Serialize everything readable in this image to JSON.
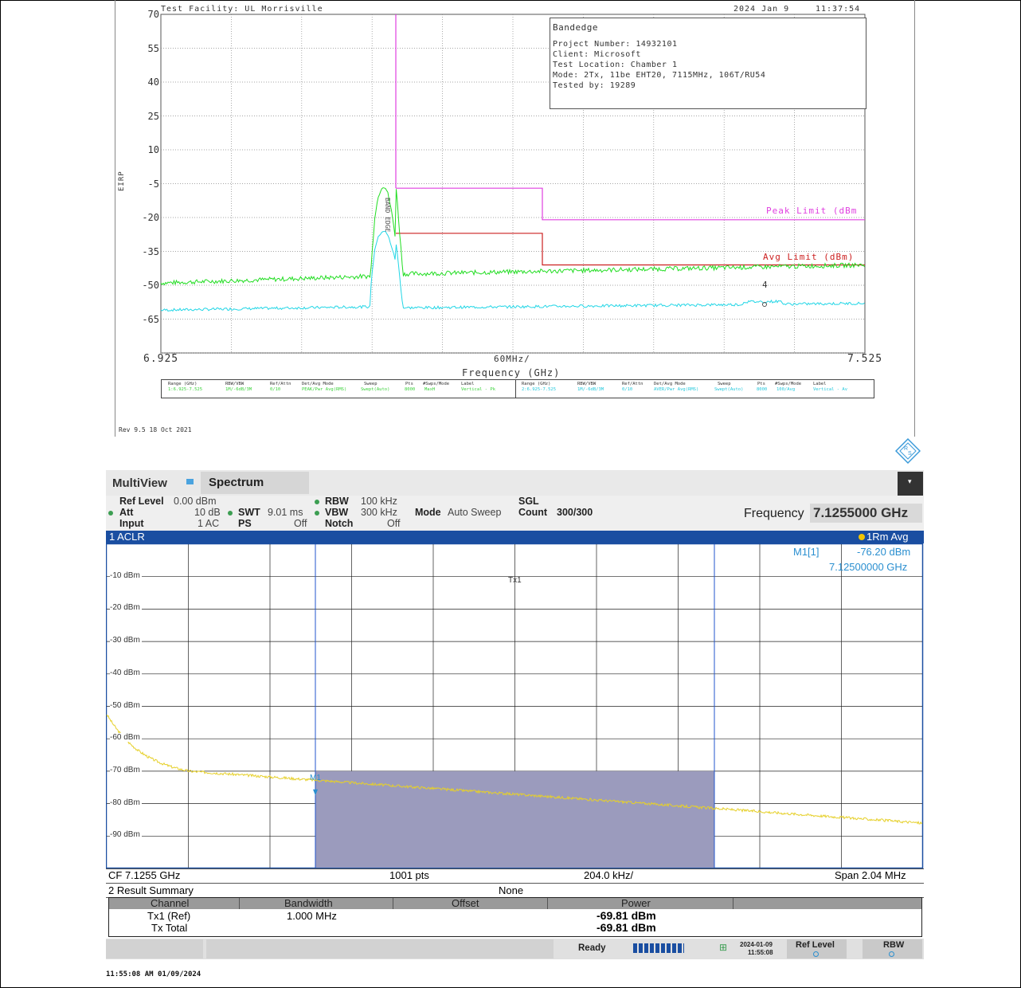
{
  "top_plot": {
    "header_left": "Test Facility:  UL Morrisville",
    "header_date": "2024 Jan 9",
    "header_time": "11:37:54",
    "info_lines": [
      "Bandedge",
      "Project Number: 14932101",
      "Client: Microsoft",
      "Test Location: Chamber 1",
      "Mode: 2Tx, 11be EHT20, 7115MHz, 106T/RU54",
      "Tested by: 19289"
    ],
    "y_label": "EIRP",
    "y_ticks": [
      "70",
      "55",
      "40",
      "25",
      "10",
      "-5",
      "-20",
      "-35",
      "-50",
      "-65"
    ],
    "x_start": "6.925",
    "x_end": "7.525",
    "x_center": "60MHz/",
    "x_label": "Frequency (GHz)",
    "band_label": "BAND EDGE",
    "peak_limit_label": "Peak Limit (dBm",
    "avg_limit_label": "Avg Limit (dBm)",
    "marker_label": "4",
    "legend_left": {
      "range_h": "Range (GHz)",
      "range_v": "1:6.925-7.525",
      "rbw_h": "RBW/VBW",
      "rbw_v": "1M/-6dB/3M",
      "ref_h": "Ref/Attn",
      "ref_v": "0/10",
      "det_h": "Det/Avg Mode",
      "det_v": "PEAK/Pwr Avg(RMS)",
      "sweep_h": "Sweep",
      "sweep_v": "Swept(Auto)",
      "pts_h": "Pts",
      "pts_v": "8000",
      "mode_h": "#Swps/Mode",
      "mode_v": "MaxH",
      "label_h": "Label",
      "label_v": "Vertical - Pk"
    },
    "legend_right": {
      "range_h": "Range (GHz)",
      "range_v": "2:6.925-7.525",
      "rbw_h": "RBW/VBW",
      "rbw_v": "1M/-6dB/3M",
      "ref_h": "Ref/Attn",
      "ref_v": "0/10",
      "det_h": "Det/Avg Mode",
      "det_v": "AVER/Pwr Avg(RMS)",
      "sweep_h": "Sweep",
      "sweep_v": "Swept(Auto)",
      "pts_h": "Pts",
      "pts_v": "8000",
      "mode_h": "#Swps/Mode",
      "mode_v": "100/Avg",
      "label_h": "Label",
      "label_v": "Vertical - Av"
    },
    "colors": {
      "peak_trace": "#22dd22",
      "avg_trace": "#22d6e6",
      "peak_limit": "#e040e0",
      "avg_limit": "#cc2020"
    },
    "rev": "Rev 9.5 18 Oct 2021"
  },
  "analyzer": {
    "tab_multiview": "MultiView",
    "tab_spectrum": "Spectrum",
    "ref_level_label": "Ref Level",
    "ref_level_value": "0.00 dBm",
    "att_label": "Att",
    "att_value": "10 dB",
    "swt_label": "SWT",
    "swt_value": "9.01 ms",
    "input_label": "Input",
    "input_value": "1 AC",
    "ps_label": "PS",
    "ps_value": "Off",
    "rbw_label": "RBW",
    "rbw_value": "100 kHz",
    "vbw_label": "VBW",
    "vbw_value": "300 kHz",
    "notch_label": "Notch",
    "notch_value": "Off",
    "mode_label": "Mode",
    "mode_value": "Auto Sweep",
    "sgl": "SGL",
    "count_label": "Count",
    "count_value": "300/300",
    "frequency_label": "Frequency",
    "frequency_value": "7.1255000 GHz",
    "diagram_title": "1 ACLR",
    "trace_mode": "1Rm Avg",
    "marker_name": "M1[1]",
    "marker_level": "-76.20 dBm",
    "marker_freq": "7.12500000 GHz",
    "marker_tag": "M1",
    "tx_label": "Tx1",
    "y_ticks": [
      "-10 dBm",
      "-20 dBm",
      "-30 dBm",
      "-40 dBm",
      "-50 dBm",
      "-60 dBm",
      "-70 dBm",
      "-80 dBm",
      "-90 dBm"
    ],
    "cf": "CF 7.1255 GHz",
    "pts": "1001 pts",
    "div": "204.0 kHz/",
    "span": "Span 2.04 MHz",
    "result_title": "2 Result Summary",
    "result_center": "None",
    "table_headers": [
      "Channel",
      "Bandwidth",
      "Offset",
      "Power"
    ],
    "rows": [
      {
        "channel": "Tx1 (Ref)",
        "bandwidth": "1.000 MHz",
        "offset": "",
        "power": "-69.81 dBm"
      },
      {
        "channel": "Tx Total",
        "bandwidth": "",
        "offset": "",
        "power": "-69.81 dBm"
      }
    ],
    "status_ready": "Ready",
    "status_date": "2024-01-09",
    "status_time": "11:55:08",
    "btn_ref_level": "Ref Level",
    "btn_rbw": "RBW",
    "trace_color": "#e6d02a",
    "channel_fill": "#9b9bbd"
  },
  "footer_timestamp": "11:55:08 AM  01/09/2024"
}
